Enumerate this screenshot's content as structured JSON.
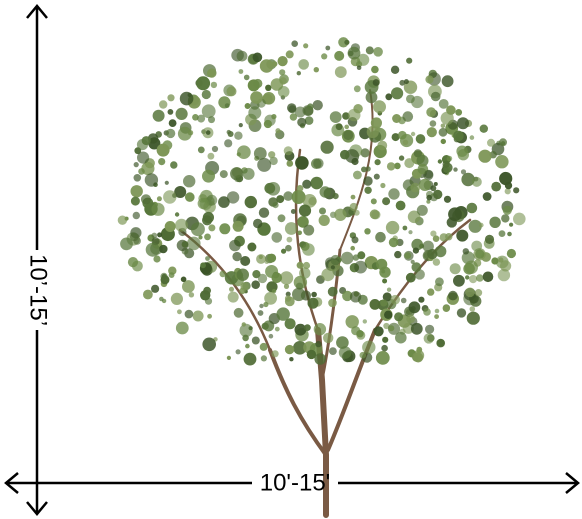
{
  "dimensions": {
    "height": "10’-15’",
    "width": "10'-15'"
  }
}
